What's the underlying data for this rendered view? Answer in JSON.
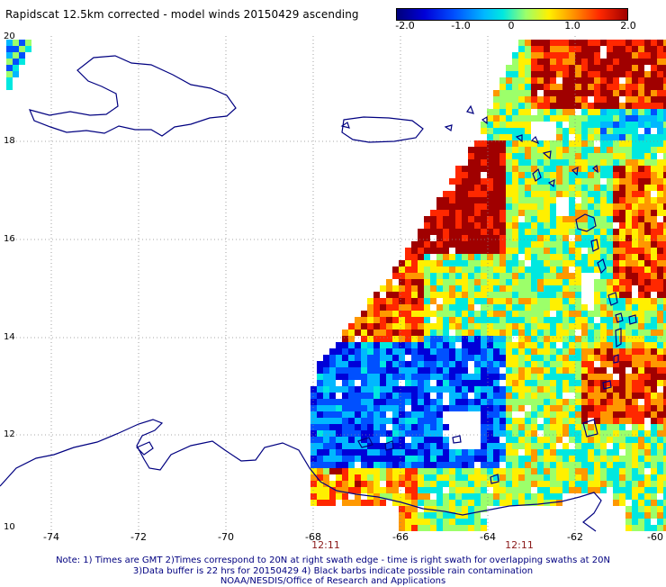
{
  "title": "Rapidscat 12.5km corrected - model winds 20150429 ascending",
  "colorbar": {
    "ticks": [
      "-2.0",
      "-1.0",
      "0",
      "1.0",
      "2.0"
    ],
    "colors": [
      "#00007a",
      "#0000d8",
      "#0050ff",
      "#00b8ff",
      "#00e8e0",
      "#9cff6a",
      "#fff000",
      "#ff9800",
      "#ff2800",
      "#a00000"
    ]
  },
  "lat_labels": [
    "20",
    "18",
    "16",
    "14",
    "12",
    "10"
  ],
  "lon_labels": [
    "-74",
    "-72",
    "-70",
    "-68",
    "-66",
    "-64",
    "-62",
    "-60"
  ],
  "times": [
    "12:11",
    "12:11"
  ],
  "notes": [
    "Note: 1) Times are GMT 2)Times correspond to 20N at right swath edge - time is right swath for overlapping swaths at 20N",
    "3)Data buffer is 22 hrs for 20150429 4) Black barbs indicate possible rain contamination",
    "NOAA/NESDIS/Office of Research and Applications"
  ],
  "map_extent": {
    "lon": [
      -75,
      -60
    ],
    "lat": [
      10,
      20
    ]
  },
  "coastline_color": "#000080"
}
